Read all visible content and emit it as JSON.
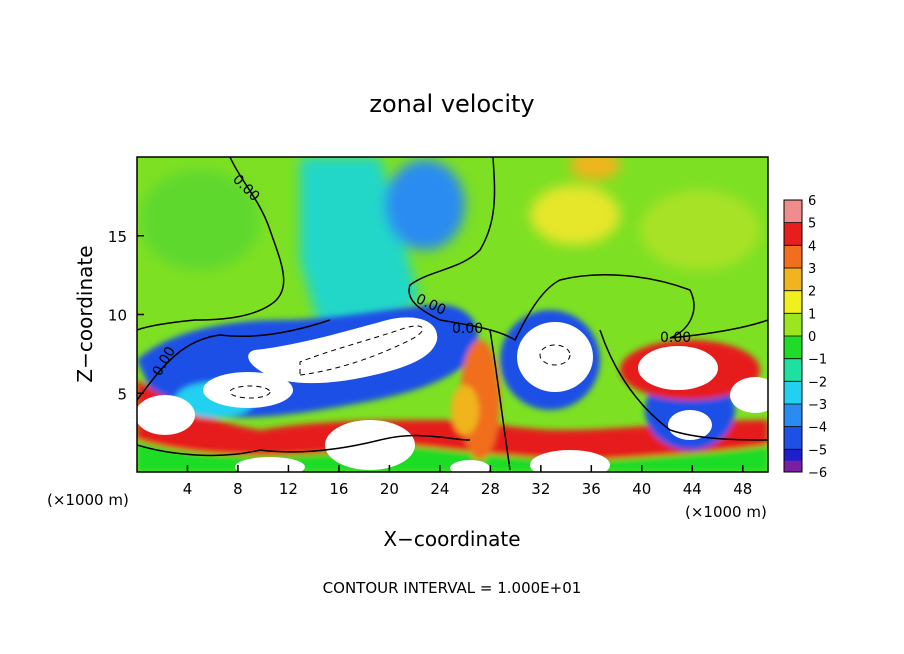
{
  "chart_data": {
    "type": "heatmap",
    "title": "zonal velocity",
    "xlabel": "X−coordinate",
    "ylabel": "Z−coordinate",
    "x_unit_left": "(×1000 m)",
    "x_unit_right": "(×1000 m)",
    "xlim": [
      0,
      50
    ],
    "ylim": [
      0,
      20
    ],
    "x_ticks": [
      4,
      8,
      12,
      16,
      20,
      24,
      28,
      32,
      36,
      40,
      44,
      48
    ],
    "x_tick_labels": [
      "4",
      "8",
      "12",
      "16",
      "20",
      "24",
      "28",
      "32",
      "36",
      "40",
      "44",
      "48"
    ],
    "y_ticks": [
      5,
      10,
      15
    ],
    "y_tick_labels": [
      "5",
      "10",
      "15"
    ],
    "footer": "CONTOUR INTERVAL = 1.000E+01",
    "contour_labels": [
      "0.00",
      "0.00",
      "0.00",
      "0.00",
      "0.00"
    ],
    "colorbar": {
      "levels": [
        -6,
        -5,
        -4,
        -3,
        -2,
        -1,
        0,
        1,
        2,
        3,
        4,
        5,
        6
      ],
      "labels": [
        "−6",
        "−5",
        "−4",
        "−3",
        "−2",
        "−1",
        "0",
        "1",
        "2",
        "3",
        "4",
        "5",
        "6"
      ],
      "colors": [
        "#7b1fa2",
        "#1e1ecd",
        "#1f50e6",
        "#2a8cf0",
        "#22d0f0",
        "#1ee0a0",
        "#1edc28",
        "#9be61e",
        "#f0f01e",
        "#f0b41e",
        "#f06e1e",
        "#e61e1e",
        "#f08c8c"
      ]
    }
  }
}
